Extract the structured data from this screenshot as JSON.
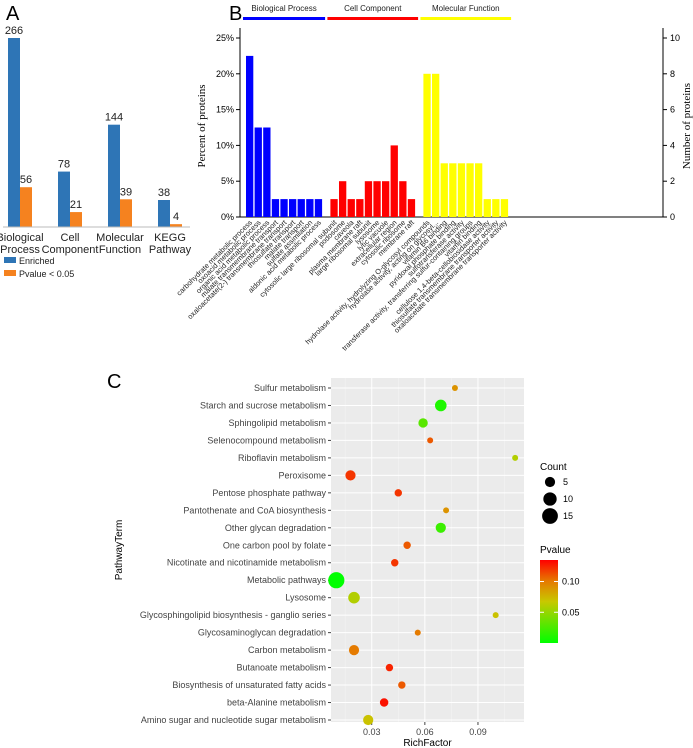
{
  "panel_a_label": "A",
  "panel_b_label": "B",
  "panel_c_label": "C",
  "colors": {
    "enriched": "#2e75b6",
    "pvalue": "#f5821f",
    "bio": "#0000ff",
    "cell": "#ff0000",
    "mol": "#ffff00",
    "panel_bg": "#ebebeb",
    "grid": "#ffffff"
  },
  "chart_data": [
    {
      "panel": "A",
      "type": "bar",
      "categories": [
        "Biological\nProcess",
        "Cell\nComponent",
        "Molecular\nFunction",
        "KEGG\nPathway"
      ],
      "series": [
        {
          "name": "Enriched",
          "values": [
            266,
            78,
            144,
            38
          ]
        },
        {
          "name": "Pvalue < 0.05",
          "values": [
            56,
            21,
            39,
            4
          ]
        }
      ],
      "ylim": [
        0,
        266
      ],
      "legend_position": "bottom-left"
    },
    {
      "panel": "B",
      "type": "bar",
      "ylabel": "Percent of proteins",
      "y2label": "Number of proteins",
      "yticks": [
        "0%",
        "5%",
        "10%",
        "15%",
        "20%",
        "25%"
      ],
      "y2ticks": [
        "0",
        "2",
        "4",
        "6",
        "8",
        "10"
      ],
      "ylim": [
        0,
        25
      ],
      "y2lim": [
        0,
        10
      ],
      "groups": [
        {
          "name": "Biological Process",
          "color": "#0000ff",
          "terms": [
            "carbohydrate metabolic process",
            "oxoacid metabolic process",
            "organic acid metabolic process",
            "malate transmembrane transport",
            "oxaloacetate(2-) transmembrane transport",
            "thiosulfate transport",
            "malate transport",
            "sulfate assimilation",
            "aldonic acid metabolic process"
          ],
          "percent": [
            22.5,
            12.5,
            12.5,
            2.5,
            2.5,
            2.5,
            2.5,
            2.5,
            2.5
          ]
        },
        {
          "name": "Cell Component",
          "color": "#ff0000",
          "terms": [
            "cytosolic large ribosomal subunit",
            "podosome",
            "caveola",
            "plasma membrane raft",
            "large ribosomal subunit",
            "lysosome",
            "lytic vacuole",
            "extracellular region",
            "cytosolic ribosome",
            "membrane raft"
          ],
          "percent": [
            2.5,
            5,
            2.5,
            2.5,
            5,
            5,
            5,
            10,
            5,
            2.5
          ]
        },
        {
          "name": "Molecular Function",
          "color": "#ffff00",
          "terms": [
            "hydrolase activity, hydrolyzing O-glycosyl compounds",
            "hydrolase activity, acting on glycosyl...",
            "vitamin B6 binding",
            "pyridoxal phosphate binding",
            "sulfotransferase activity",
            "transferase activity, transferring sulfur-containing groups",
            "vitamin binding",
            "cellulose 1,4-beta-cellobiosidase activity",
            "thiosulfate transmembrane transporter activity",
            "oxaloacetate transmembrane transporter activity"
          ],
          "percent": [
            20,
            20,
            7.5,
            7.5,
            7.5,
            7.5,
            7.5,
            2.5,
            2.5,
            2.5
          ]
        }
      ]
    },
    {
      "panel": "C",
      "type": "scatter",
      "xlabel": "RichFactor",
      "ylabel": "PathwayTerm",
      "xticks": [
        "0.03",
        "0.06",
        "0.09"
      ],
      "xlim": [
        0.007,
        0.116
      ],
      "legend_count_title": "Count",
      "legend_count_values": [
        "5",
        "10",
        "15"
      ],
      "legend_pvalue_title": "Pvalue",
      "legend_pvalue_ticks": [
        "0.10",
        "0.05"
      ],
      "pvalue_range": [
        0.0,
        0.135
      ],
      "points": [
        {
          "term": "Sulfur metabolism",
          "rich": 0.077,
          "count": 1,
          "pvalue": 0.09
        },
        {
          "term": "Starch and sucrose metabolism",
          "rich": 0.069,
          "count": 7,
          "pvalue": 0.01
        },
        {
          "term": "Sphingolipid metabolism",
          "rich": 0.059,
          "count": 4,
          "pvalue": 0.03
        },
        {
          "term": "Selenocompound metabolism",
          "rich": 0.063,
          "count": 1,
          "pvalue": 0.11
        },
        {
          "term": "Riboflavin metabolism",
          "rich": 0.111,
          "count": 1,
          "pvalue": 0.06
        },
        {
          "term": "Peroxisome",
          "rich": 0.018,
          "count": 5,
          "pvalue": 0.12
        },
        {
          "term": "Pentose phosphate pathway",
          "rich": 0.045,
          "count": 2,
          "pvalue": 0.12
        },
        {
          "term": "Pantothenate and CoA biosynthesis",
          "rich": 0.072,
          "count": 1,
          "pvalue": 0.09
        },
        {
          "term": "Other glycan degradation",
          "rich": 0.069,
          "count": 5,
          "pvalue": 0.02
        },
        {
          "term": "One carbon pool by folate",
          "rich": 0.05,
          "count": 2,
          "pvalue": 0.11
        },
        {
          "term": "Nicotinate and nicotinamide metabolism",
          "rich": 0.043,
          "count": 2,
          "pvalue": 0.12
        },
        {
          "term": "Metabolic pathways",
          "rich": 0.01,
          "count": 16,
          "pvalue": 0.0
        },
        {
          "term": "Lysosome",
          "rich": 0.02,
          "count": 7,
          "pvalue": 0.06
        },
        {
          "term": "Glycosphingolipid biosynthesis - ganglio series",
          "rich": 0.1,
          "count": 1,
          "pvalue": 0.07
        },
        {
          "term": "Glycosaminoglycan degradation",
          "rich": 0.056,
          "count": 1,
          "pvalue": 0.1
        },
        {
          "term": "Carbon metabolism",
          "rich": 0.02,
          "count": 5,
          "pvalue": 0.1
        },
        {
          "term": "Butanoate metabolism",
          "rich": 0.04,
          "count": 2,
          "pvalue": 0.125
        },
        {
          "term": "Biosynthesis of unsaturated fatty acids",
          "rich": 0.047,
          "count": 2,
          "pvalue": 0.11
        },
        {
          "term": "beta-Alanine metabolism",
          "rich": 0.037,
          "count": 3,
          "pvalue": 0.13
        },
        {
          "term": "Amino sugar and nucleotide sugar metabolism",
          "rich": 0.028,
          "count": 5,
          "pvalue": 0.07
        }
      ]
    }
  ]
}
